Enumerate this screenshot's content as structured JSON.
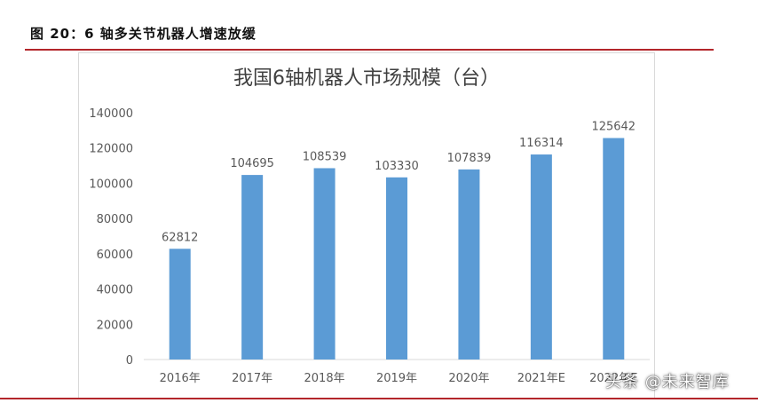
{
  "figure_title": "图 20：6 轴多关节机器人增速放缓",
  "watermark": "头条 @未来智库",
  "colors": {
    "bar": "#5b9bd5",
    "rule": "#b3262b",
    "text": "#595959"
  },
  "chart_data": {
    "type": "bar",
    "title": "我国6轴机器人市场规模（台）",
    "categories": [
      "2016年",
      "2017年",
      "2018年",
      "2019年",
      "2020年",
      "2021年E",
      "2022年E"
    ],
    "values": [
      62812,
      104695,
      108539,
      103330,
      107839,
      116314,
      125642
    ],
    "yticks": [
      0,
      20000,
      40000,
      60000,
      80000,
      100000,
      120000,
      140000
    ],
    "ylim": [
      0,
      140000
    ],
    "xlabel": "",
    "ylabel": "",
    "grid": false
  }
}
